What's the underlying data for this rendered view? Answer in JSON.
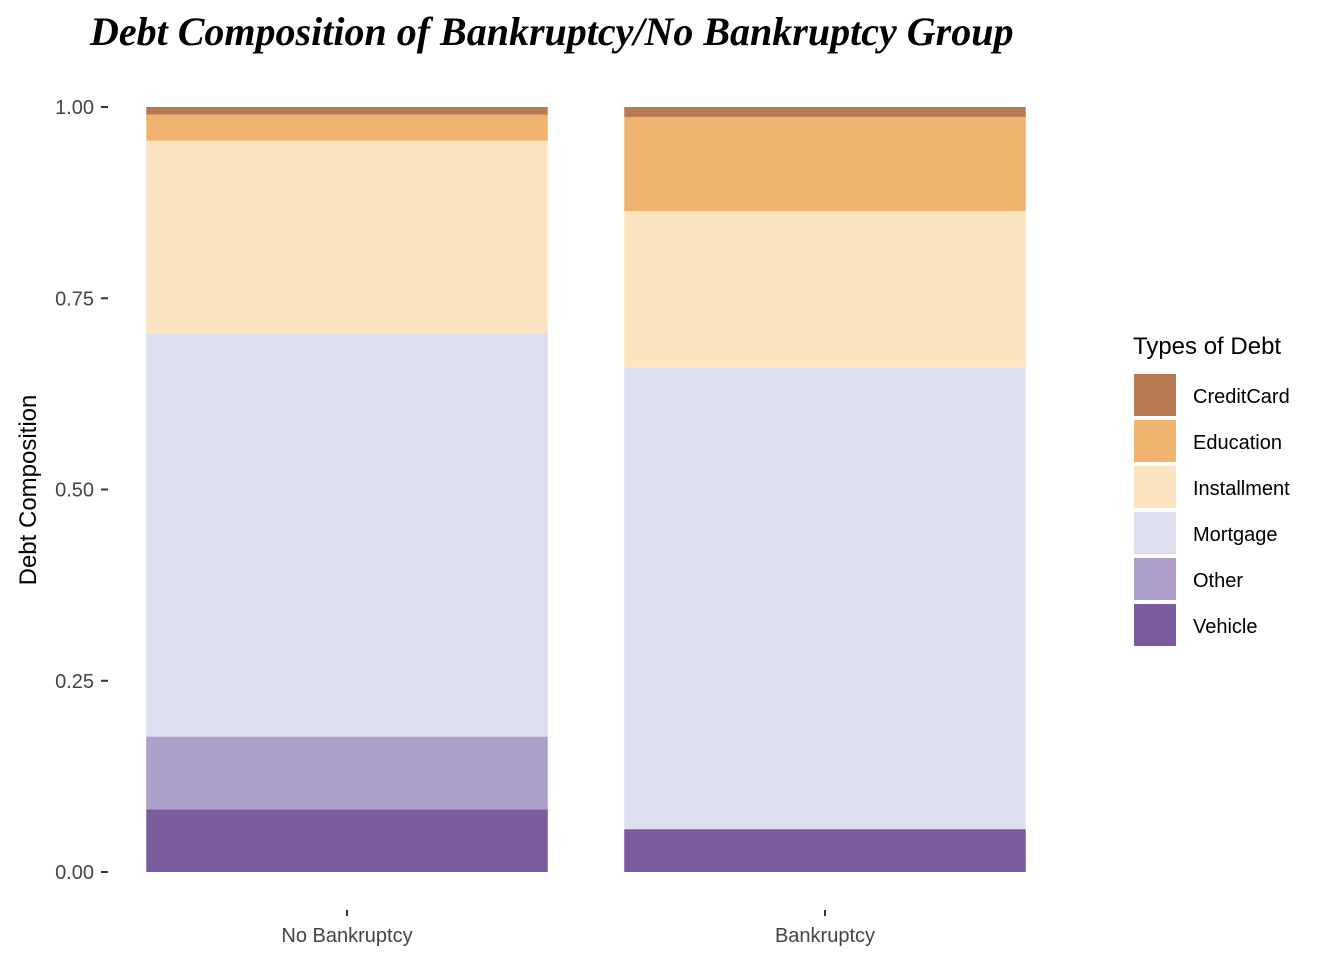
{
  "chart_data": {
    "type": "bar",
    "stacked": true,
    "title": "Debt Composition of Bankruptcy/No Bankruptcy Group",
    "xlabel": "",
    "ylabel": "Debt Composition",
    "ylim": [
      0,
      1
    ],
    "yticks": [
      "0.00",
      "0.25",
      "0.50",
      "0.75",
      "1.00"
    ],
    "categories": [
      "No Bankruptcy",
      "Bankruptcy"
    ],
    "legend": {
      "title": "Types of Debt",
      "placement": "right"
    },
    "grid": false,
    "series": [
      {
        "name": "Vehicle",
        "color": "#7a5c9d",
        "values": [
          0.082,
          0.056
        ]
      },
      {
        "name": "Other",
        "color": "#aca0cb",
        "values": [
          0.095,
          0.0
        ]
      },
      {
        "name": "Mortgage",
        "color": "#dedfee",
        "values": [
          0.527,
          0.603
        ]
      },
      {
        "name": "Installment",
        "color": "#fce4c0",
        "values": [
          0.252,
          0.205
        ]
      },
      {
        "name": "Education",
        "color": "#f0b26f",
        "values": [
          0.034,
          0.123
        ]
      },
      {
        "name": "CreditCard",
        "color": "#b87a53",
        "values": [
          0.01,
          0.013
        ]
      }
    ],
    "legend_order": [
      "CreditCard",
      "Education",
      "Installment",
      "Mortgage",
      "Other",
      "Vehicle"
    ]
  }
}
